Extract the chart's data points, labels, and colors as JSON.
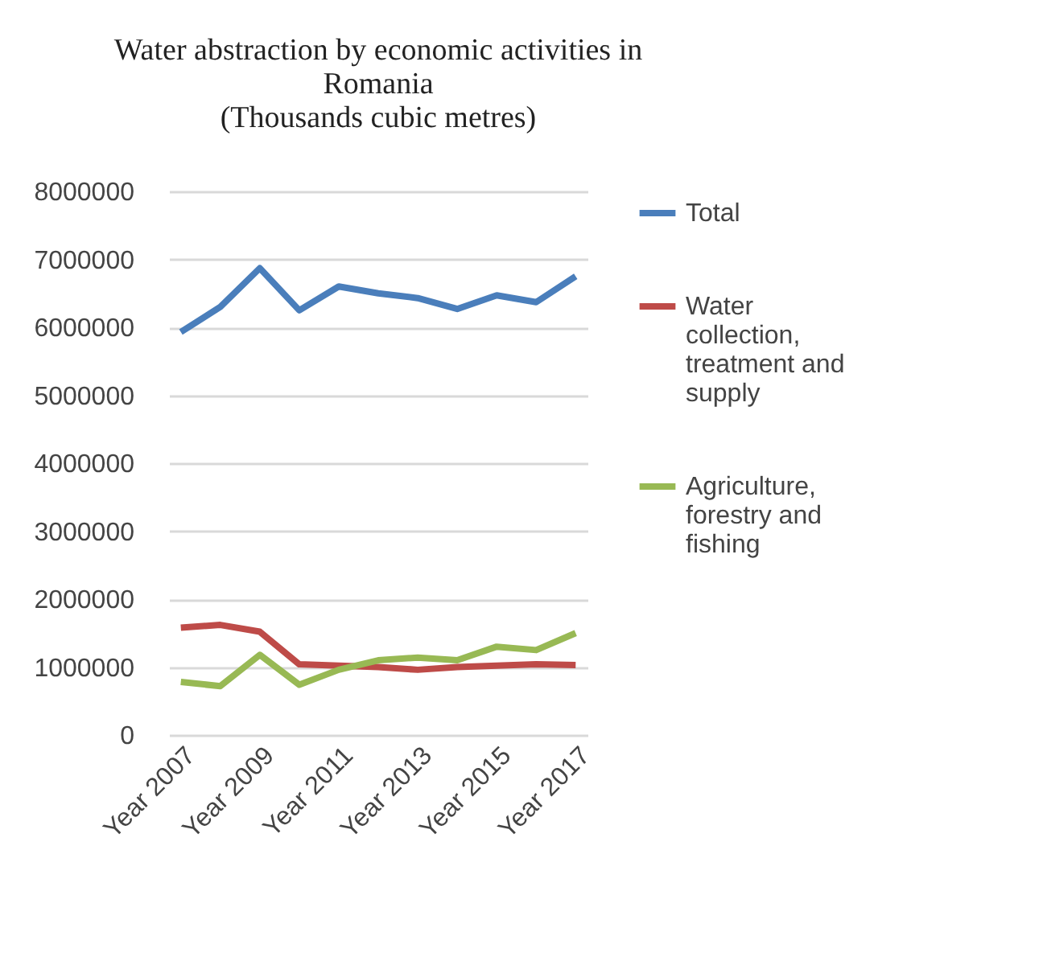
{
  "chart_data": {
    "type": "line",
    "title": [
      "Water abstraction by economic activities in",
      "Romania",
      "(Thousands cubic metres)"
    ],
    "categories": [
      "Year 2007",
      null,
      "Year 2009",
      null,
      "Year 2011",
      null,
      "Year 2013",
      null,
      "Year 2015",
      null,
      "Year 2017"
    ],
    "series": [
      {
        "name": "Total",
        "color": "#4a7ebb",
        "values": [
          5930000,
          6300000,
          6870000,
          6250000,
          6600000,
          6500000,
          6430000,
          6270000,
          6470000,
          6370000,
          6750000
        ]
      },
      {
        "name": "Water collection, treatment and supply",
        "color": "#be4b48",
        "values": [
          1580000,
          1620000,
          1520000,
          1040000,
          1020000,
          1000000,
          960000,
          1000000,
          1020000,
          1040000,
          1030000
        ]
      },
      {
        "name": "Agriculture, forestry and fishing",
        "color": "#98b954",
        "values": [
          780000,
          720000,
          1180000,
          740000,
          960000,
          1100000,
          1140000,
          1100000,
          1300000,
          1250000,
          1500000
        ]
      }
    ],
    "ylim": [
      0,
      8000000
    ],
    "yticks": [
      0,
      1000000,
      2000000,
      3000000,
      4000000,
      5000000,
      6000000,
      7000000,
      8000000
    ],
    "grid": "y",
    "legend": "right",
    "marker": "none",
    "line_style": "solid"
  }
}
